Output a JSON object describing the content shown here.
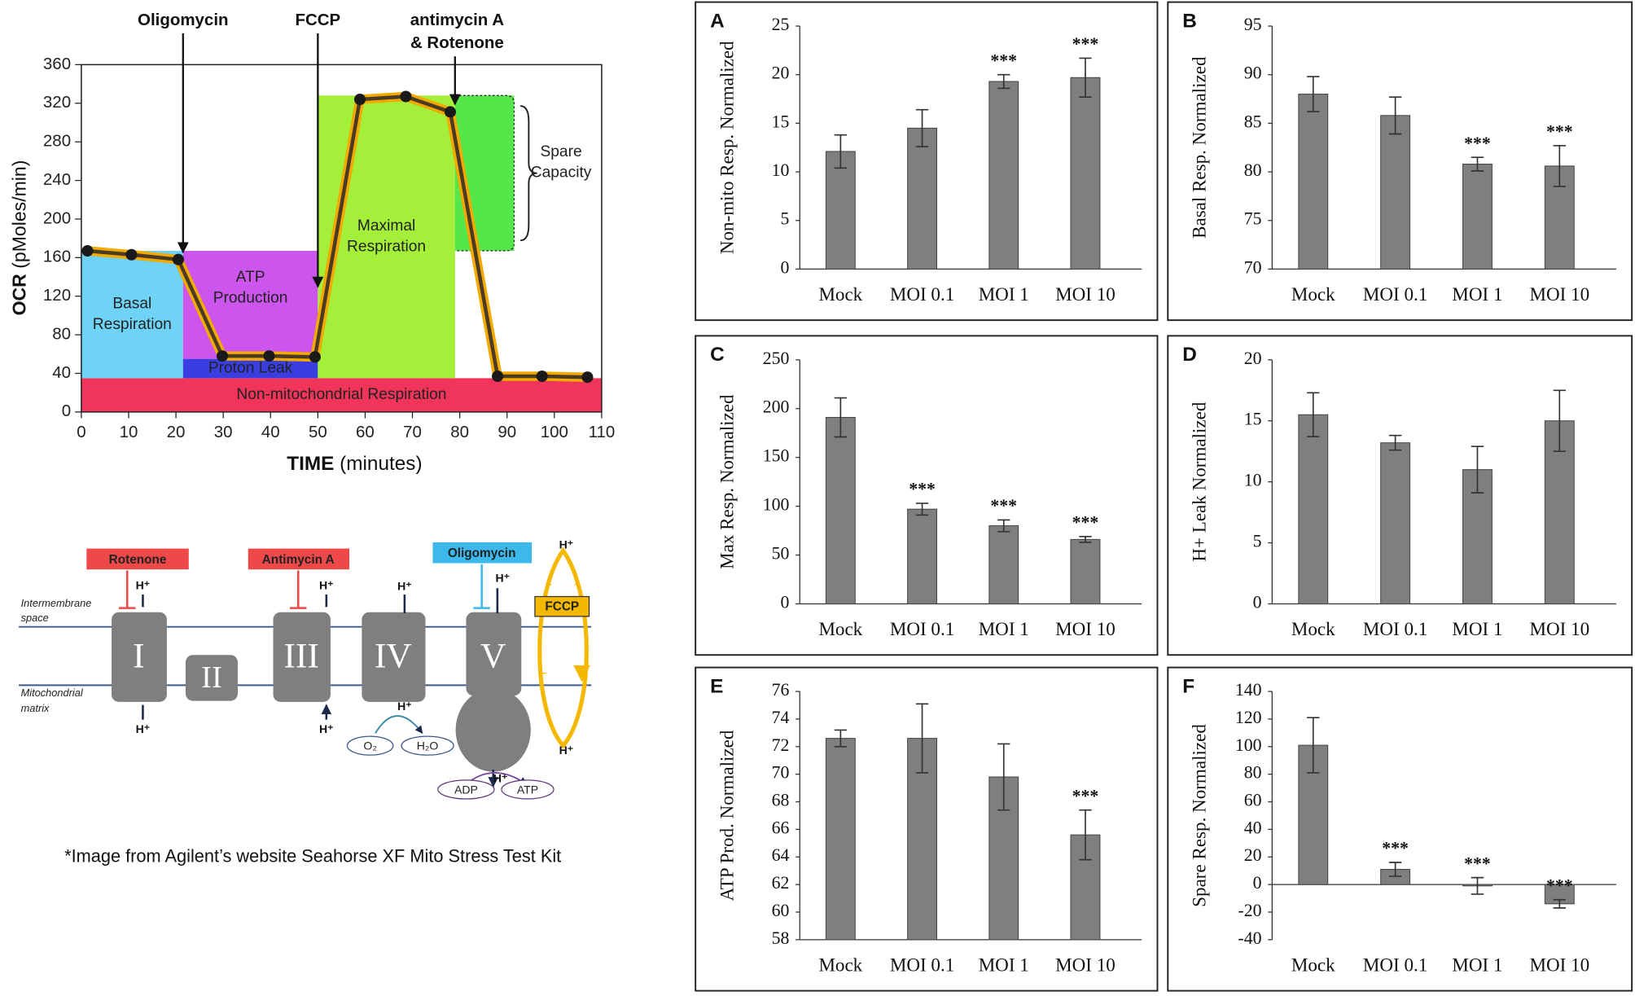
{
  "chart_data": [
    {
      "type": "line",
      "ylabel": {
        "bold": "OCR",
        "rest": "(pMoles/min)"
      },
      "xlabel": {
        "bold": "TIME",
        "rest": "(minutes)"
      },
      "x": [
        1.3,
        10.6,
        20.5,
        29.8,
        39.7,
        49.4,
        58.9,
        68.6,
        78,
        88,
        97.4,
        107
      ],
      "values": [
        167,
        163,
        158,
        58,
        58,
        57,
        324,
        327,
        311,
        37,
        37,
        36
      ],
      "color": "#4a3b22",
      "halo_color": "#f2a900",
      "xlim": [
        0,
        110
      ],
      "xticks": [
        0,
        10,
        20,
        30,
        40,
        50,
        60,
        70,
        80,
        90,
        100,
        110
      ],
      "ylim": [
        0,
        360
      ],
      "yticks": [
        0,
        40,
        80,
        120,
        160,
        200,
        240,
        280,
        320,
        360
      ],
      "regions": [
        {
          "label": [
            "Non-mitochondrial Respiration"
          ],
          "x": [
            0,
            110
          ],
          "y": [
            0,
            35
          ],
          "color": "#f0345a"
        },
        {
          "label": [
            "Basal",
            "Respiration"
          ],
          "x": [
            0,
            21.5
          ],
          "y": [
            35,
            167
          ],
          "color": "#6fd3f7"
        },
        {
          "label": [
            "ATP",
            "Production"
          ],
          "x": [
            21.5,
            50
          ],
          "y": [
            55,
            167
          ],
          "color": "#cc55ee"
        },
        {
          "label": [
            "Proton Leak"
          ],
          "x": [
            21.5,
            50
          ],
          "y": [
            35,
            55
          ],
          "color": "#3a3ee0"
        },
        {
          "label": [
            "Maximal",
            "Respiration"
          ],
          "x": [
            50,
            79
          ],
          "y": [
            35,
            328
          ],
          "color": "#a4ef3a"
        },
        {
          "label": [
            "Spare",
            "Capacity"
          ],
          "x": [
            79,
            91.5
          ],
          "y": [
            167,
            328
          ],
          "color": "#55e64a",
          "dashed": true
        }
      ],
      "annotations": [
        {
          "text": [
            "Oligomycin"
          ],
          "x": 21.5
        },
        {
          "text": [
            "FCCP"
          ],
          "x": 50
        },
        {
          "text": [
            "antimycin A",
            "& Rotenone"
          ],
          "x": 79
        }
      ]
    },
    {
      "type": "bar",
      "label": "A",
      "ylabel": "Non-mito Resp. Normalized",
      "categories": [
        "Mock",
        "MOI 0.1",
        "MOI 1",
        "MOI 10"
      ],
      "values": [
        12.1,
        14.5,
        19.3,
        19.7
      ],
      "errors": [
        1.7,
        1.9,
        0.7,
        2.0
      ],
      "annotations": [
        null,
        null,
        "***",
        "***"
      ],
      "color": "#7f7f7f",
      "ylim": [
        0,
        25
      ],
      "yticks": [
        0,
        5,
        10,
        15,
        20,
        25
      ]
    },
    {
      "type": "bar",
      "label": "B",
      "ylabel": "Basal Resp. Normalized",
      "categories": [
        "Mock",
        "MOI 0.1",
        "MOI 1",
        "MOI 10"
      ],
      "values": [
        88.0,
        85.8,
        80.8,
        80.6
      ],
      "errors": [
        1.8,
        1.9,
        0.7,
        2.1
      ],
      "annotations": [
        null,
        null,
        "***",
        "***"
      ],
      "color": "#7f7f7f",
      "ylim": [
        70,
        95
      ],
      "yticks": [
        70,
        75,
        80,
        85,
        90,
        95
      ]
    },
    {
      "type": "bar",
      "label": "C",
      "ylabel": "Max Resp. Normalized",
      "categories": [
        "Mock",
        "MOI 0.1",
        "MOI 1",
        "MOI 10"
      ],
      "values": [
        191,
        97,
        80,
        66
      ],
      "errors": [
        20,
        6,
        6,
        3
      ],
      "annotations": [
        null,
        "***",
        "***",
        "***"
      ],
      "color": "#7f7f7f",
      "ylim": [
        0,
        250
      ],
      "yticks": [
        0,
        50,
        100,
        150,
        200,
        250
      ]
    },
    {
      "type": "bar",
      "label": "D",
      "ylabel": "H+ Leak Normalized",
      "categories": [
        "Mock",
        "MOI 0.1",
        "MOI 1",
        "MOI 10"
      ],
      "values": [
        15.5,
        13.2,
        11.0,
        15.0
      ],
      "errors": [
        1.8,
        0.6,
        1.9,
        2.5
      ],
      "annotations": [
        null,
        null,
        null,
        null
      ],
      "color": "#7f7f7f",
      "ylim": [
        0,
        20
      ],
      "yticks": [
        0,
        5,
        10,
        15,
        20
      ]
    },
    {
      "type": "bar",
      "label": "E",
      "ylabel": "ATP Prod. Normalized",
      "categories": [
        "Mock",
        "MOI 0.1",
        "MOI 1",
        "MOI 10"
      ],
      "values": [
        72.6,
        72.6,
        69.8,
        65.6
      ],
      "errors": [
        0.6,
        2.5,
        2.4,
        1.8
      ],
      "annotations": [
        null,
        null,
        null,
        "***"
      ],
      "color": "#7f7f7f",
      "ylim": [
        58,
        76
      ],
      "yticks": [
        58,
        60,
        62,
        64,
        66,
        68,
        70,
        72,
        74,
        76
      ]
    },
    {
      "type": "bar",
      "label": "F",
      "ylabel": "Spare Resp. Normalized",
      "categories": [
        "Mock",
        "MOI 0.1",
        "MOI 1",
        "MOI 10"
      ],
      "values": [
        101,
        11,
        -1,
        -14
      ],
      "errors": [
        20,
        5,
        6,
        3
      ],
      "annotations": [
        null,
        "***",
        "***",
        "***"
      ],
      "color": "#7f7f7f",
      "ylim": [
        -40,
        140
      ],
      "yticks": [
        -40,
        -20,
        0,
        20,
        40,
        60,
        80,
        100,
        120,
        140
      ]
    }
  ],
  "diagram": {
    "inhibitors": [
      "Rotenone",
      "Antimycin A",
      "Oligomycin",
      "FCCP"
    ],
    "complexes": [
      "I",
      "II",
      "III",
      "IV",
      "V"
    ],
    "compartments": [
      [
        "Intermembrane",
        "space"
      ],
      [
        "Mitochondrial",
        "matrix"
      ]
    ],
    "protons": [
      "H⁺",
      "H⁺",
      "H⁺",
      "H⁺",
      "H⁺",
      "H⁺",
      "H⁺",
      "H⁺",
      "H⁺",
      "H⁺"
    ],
    "molecules": [
      "O₂",
      "H₂O",
      "ADP",
      "ATP"
    ]
  },
  "caption": "*Image from Agilent’s website Seahorse XF Mito Stress Test Kit"
}
